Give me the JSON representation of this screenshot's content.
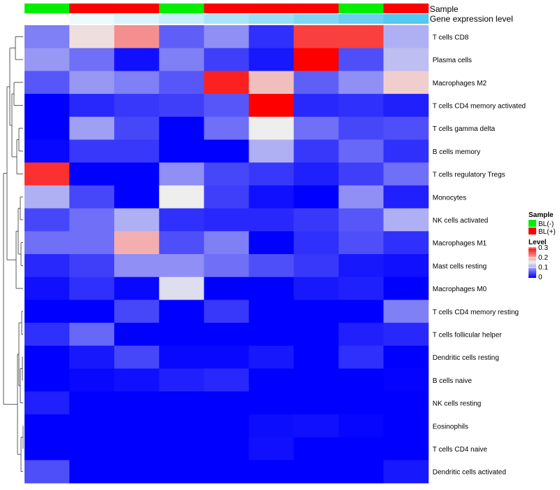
{
  "chart_data": {
    "type": "heatmap",
    "annotation_labels": {
      "sample": "Sample",
      "expression": "Gene expression level"
    },
    "sample_annotation": [
      "BL(-)",
      "BL(+)",
      "BL(+)",
      "BL(-)",
      "BL(+)",
      "BL(+)",
      "BL(+)",
      "BL(-)",
      "BL(+)"
    ],
    "expression_annotation": [
      0.0,
      0.03,
      0.06,
      0.1,
      0.15,
      0.18,
      0.22,
      0.26,
      0.3
    ],
    "rows": [
      "T cells CD8",
      "Plasma cells",
      "Macrophages M2",
      "T cells CD4 memory activated",
      "T cells gamma delta",
      "B cells memory",
      "T cells regulatory  Tregs",
      "Monocytes",
      "NK cells activated",
      "Macrophages M1",
      "Mast cells resting",
      "Macrophages M0",
      "T cells CD4 memory resting",
      "T cells follicular helper",
      "Dendritic cells resting",
      "B cells naive",
      "NK cells resting",
      "Eosinophils",
      "T cells CD4 naive",
      "Dendritic cells activated"
    ],
    "values": [
      [
        0.08,
        0.16,
        0.21,
        0.06,
        0.09,
        0.03,
        0.26,
        0.26,
        0.11
      ],
      [
        0.095,
        0.07,
        0.01,
        0.08,
        0.04,
        0.015,
        0.3,
        0.05,
        0.12
      ],
      [
        0.055,
        0.095,
        0.08,
        0.055,
        0.28,
        0.18,
        0.06,
        0.09,
        0.17
      ],
      [
        0.0,
        0.025,
        0.035,
        0.04,
        0.055,
        0.3,
        0.025,
        0.03,
        0.02
      ],
      [
        0.0,
        0.1,
        0.045,
        0.0,
        0.07,
        0.15,
        0.07,
        0.045,
        0.05
      ],
      [
        0.005,
        0.035,
        0.035,
        0.0,
        0.0,
        0.11,
        0.035,
        0.065,
        0.03
      ],
      [
        0.27,
        0.0,
        0.0,
        0.09,
        0.045,
        0.035,
        0.02,
        0.04,
        0.07
      ],
      [
        0.11,
        0.045,
        0.0,
        0.15,
        0.04,
        0.01,
        0.0,
        0.09,
        0.02
      ],
      [
        0.045,
        0.07,
        0.11,
        0.03,
        0.025,
        0.025,
        0.035,
        0.055,
        0.11
      ],
      [
        0.07,
        0.07,
        0.19,
        0.05,
        0.08,
        0.0,
        0.03,
        0.05,
        0.03
      ],
      [
        0.025,
        0.04,
        0.09,
        0.09,
        0.07,
        0.05,
        0.035,
        0.015,
        0.01
      ],
      [
        0.01,
        0.03,
        0.005,
        0.14,
        0.0,
        0.0,
        0.015,
        0.02,
        0.0
      ],
      [
        0.0,
        0.0,
        0.045,
        0.0,
        0.035,
        0.0,
        0.0,
        0.0,
        0.08
      ],
      [
        0.03,
        0.065,
        0.0,
        0.0,
        0.0,
        0.0,
        0.0,
        0.02,
        0.025
      ],
      [
        0.0,
        0.015,
        0.045,
        0.005,
        0.005,
        0.015,
        0.0,
        0.03,
        0.0
      ],
      [
        0.0,
        0.005,
        0.01,
        0.02,
        0.025,
        0.0,
        0.0,
        0.0,
        0.002
      ],
      [
        0.02,
        0.0,
        0.0,
        0.0,
        0.0,
        0.0,
        0.0,
        0.0,
        0.0
      ],
      [
        0.0,
        0.0,
        0.0,
        0.0,
        0.0,
        0.008,
        0.01,
        0.004,
        0.0
      ],
      [
        0.0,
        0.0,
        0.0,
        0.0,
        0.0,
        0.01,
        0.0,
        0.0,
        0.0
      ],
      [
        0.05,
        0.0,
        0.0,
        0.0,
        0.0,
        0.0,
        0.0,
        0.0,
        0.015
      ]
    ],
    "color_scale": {
      "low": "#0000ff",
      "mid": "#eeeeee",
      "high": "#ff0000",
      "min": 0,
      "mid_value": 0.15,
      "max": 0.3
    },
    "legend": {
      "sample_title": "Sample",
      "sample_items": [
        {
          "label": "BL(-)",
          "color": "#00ee00"
        },
        {
          "label": "BL(+)",
          "color": "#ff0000"
        }
      ],
      "level_title": "Level",
      "level_ticks": [
        "0.3",
        "0.2",
        "0.1",
        "0"
      ],
      "placement": "right"
    },
    "row_dendrogram": true
  }
}
